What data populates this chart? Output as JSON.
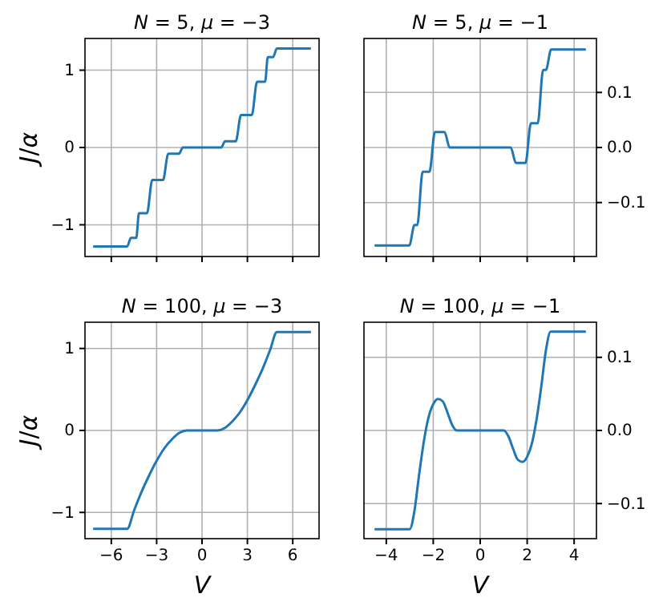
{
  "chart_data": [
    {
      "type": "line",
      "title": "N = 5, μ = −3",
      "ylabel": "J/α",
      "xlim": [
        -7.74,
        7.74
      ],
      "xticks": [
        -6,
        -3,
        0,
        3,
        6
      ],
      "ylim": [
        -1.41,
        1.41
      ],
      "yticks": [
        {
          "value": -1,
          "label": "−1"
        },
        0,
        1
      ],
      "tick_labels": "y",
      "grid": true,
      "series": [
        {
          "color": "#1f77b4",
          "x": [
            -7.2,
            -4.95,
            -4.7,
            -4.35,
            -4.17,
            -3.64,
            -3.29,
            -2.58,
            -2.23,
            -1.52,
            -1.27,
            1.27,
            1.52,
            2.23,
            2.58,
            3.29,
            3.64,
            4.17,
            4.35,
            4.7,
            4.95,
            7.2
          ],
          "values": [
            -1.28,
            -1.28,
            -1.17,
            -1.17,
            -0.85,
            -0.85,
            -0.42,
            -0.42,
            -0.08,
            -0.08,
            0,
            0,
            0.08,
            0.08,
            0.42,
            0.42,
            0.85,
            0.85,
            1.17,
            1.17,
            1.28,
            1.28
          ]
        }
      ]
    },
    {
      "type": "line",
      "title": "N = 5, μ = −1",
      "xlim": [
        -4.95,
        4.95
      ],
      "xticks": [
        -4,
        -2,
        0,
        2,
        4
      ],
      "ylim": [
        -0.198,
        0.198
      ],
      "yticks": [
        {
          "value": -0.1,
          "label": "−0.1"
        },
        {
          "value": 0,
          "label": "0.0"
        },
        0.1
      ],
      "tick_labels": "y",
      "grid": true,
      "series": [
        {
          "color": "#1f77b4",
          "x": [
            -4.5,
            -3.02,
            -2.8,
            -2.68,
            -2.45,
            -2.16,
            -1.93,
            -1.52,
            -1.3,
            1.3,
            1.52,
            1.93,
            2.16,
            2.45,
            2.68,
            2.8,
            3.02,
            4.5
          ],
          "values": [
            -0.178,
            -0.178,
            -0.141,
            -0.141,
            -0.044,
            -0.044,
            0.028,
            0.028,
            0,
            0,
            -0.028,
            -0.028,
            0.044,
            0.044,
            0.141,
            0.141,
            0.178,
            0.178
          ]
        }
      ]
    },
    {
      "type": "line",
      "title": "N = 100, μ = −3",
      "xlabel": "V",
      "ylabel": "J/α",
      "xlim": [
        -7.74,
        7.74
      ],
      "xticks": [
        {
          "value": -6,
          "label": "−6"
        },
        {
          "value": -3,
          "label": "−3"
        },
        0,
        3,
        6
      ],
      "ylim": [
        -1.32,
        1.32
      ],
      "yticks": [
        {
          "value": -1,
          "label": "−1"
        },
        0,
        1
      ],
      "grid": true,
      "series": [
        {
          "color": "#1f77b4",
          "x": [
            -7.2,
            -4.95,
            -4.5,
            -4,
            -3.5,
            -3,
            -2.5,
            -2,
            -1.5,
            -1,
            0,
            1,
            1.5,
            2,
            2.5,
            3,
            3.5,
            4,
            4.5,
            4.95,
            7.2
          ],
          "values": [
            -1.2,
            -1.2,
            -0.98,
            -0.75,
            -0.55,
            -0.37,
            -0.22,
            -0.11,
            -0.03,
            0,
            0,
            0,
            0.03,
            0.11,
            0.22,
            0.37,
            0.55,
            0.75,
            0.98,
            1.2,
            1.2
          ]
        }
      ]
    },
    {
      "type": "line",
      "title": "N = 100, μ = −1",
      "xlabel": "V",
      "xlim": [
        -4.95,
        4.95
      ],
      "xticks": [
        {
          "value": -4,
          "label": "−4"
        },
        {
          "value": -2,
          "label": "−2"
        },
        0,
        2,
        4
      ],
      "ylim": [
        -0.148,
        0.148
      ],
      "yticks": [
        {
          "value": -0.1,
          "label": "−0.1"
        },
        {
          "value": 0,
          "label": "0.0"
        },
        0.1
      ],
      "grid": true,
      "series": [
        {
          "color": "#1f77b4",
          "x": [
            -4.5,
            -3,
            -2.8,
            -2.6,
            -2.4,
            -2.2,
            -2,
            -1.8,
            -1.6,
            -1.4,
            -1.2,
            -1,
            0,
            1,
            1.2,
            1.4,
            1.6,
            1.8,
            2,
            2.2,
            2.4,
            2.6,
            2.8,
            3,
            4.5
          ],
          "values": [
            -0.135,
            -0.135,
            -0.11,
            -0.06,
            -0.015,
            0.018,
            0.036,
            0.043,
            0.04,
            0.025,
            0.008,
            0,
            0,
            0,
            -0.008,
            -0.025,
            -0.04,
            -0.043,
            -0.036,
            -0.018,
            0.015,
            0.06,
            0.11,
            0.135,
            0.135
          ]
        }
      ]
    }
  ]
}
